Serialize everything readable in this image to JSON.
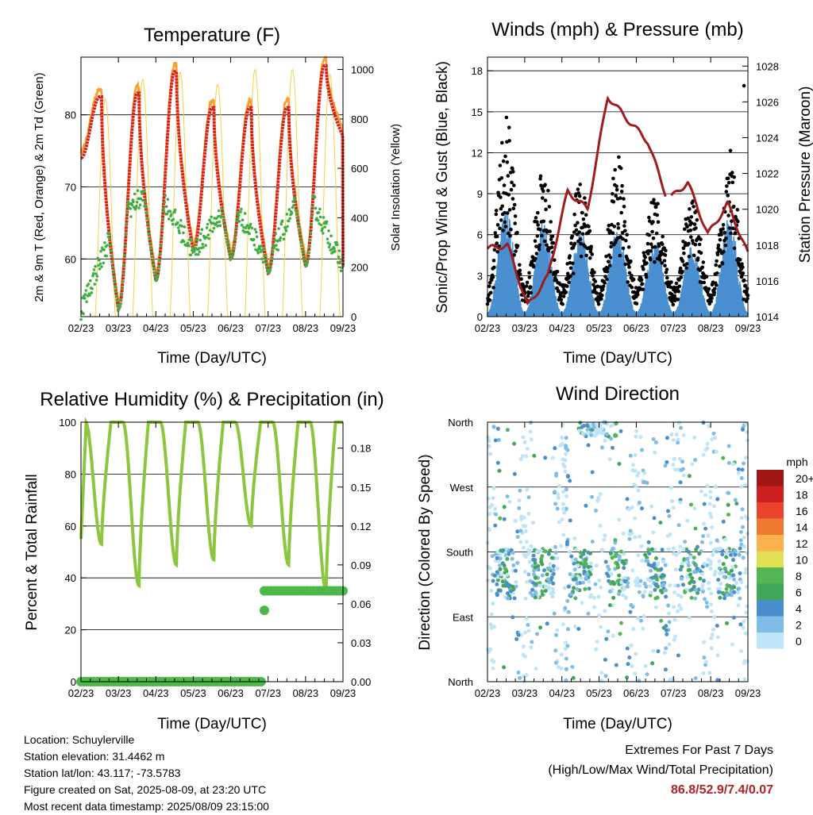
{
  "x_ticks": [
    "02/23",
    "03/23",
    "04/23",
    "05/23",
    "06/23",
    "07/23",
    "08/23",
    "09/23"
  ],
  "panels": {
    "temperature": {
      "title": "Temperature (F)",
      "xlabel": "Time (Day/UTC)",
      "ylabel_left": "2m & 9m T (Red, Orange) & 2m Td (Green)",
      "ylabel_right": "Solar Insolation (Yellow)",
      "left_ticks": [
        "60",
        "70",
        "80"
      ],
      "right_ticks": [
        "0",
        "200",
        "400",
        "600",
        "800",
        "1000"
      ]
    },
    "winds": {
      "title": "Winds (mph) & Pressure (mb)",
      "xlabel": "Time (Day/UTC)",
      "ylabel_left": "Sonic/Prop Wind & Gust (Blue, Black)",
      "ylabel_right": "Station Pressure (Maroon)",
      "left_ticks": [
        "0",
        "3",
        "6",
        "9",
        "12",
        "15",
        "18"
      ],
      "right_ticks": [
        "1014",
        "1016",
        "1018",
        "1020",
        "1022",
        "1024",
        "1026",
        "1028"
      ]
    },
    "humidity": {
      "title": "Relative Humidity (%) & Precipitation (in)",
      "xlabel": "Time (Day/UTC)",
      "ylabel_left": "Percent & Total Rainfall",
      "left_ticks": [
        "0",
        "20",
        "40",
        "60",
        "80",
        "100"
      ],
      "right_ticks": [
        "0.00",
        "0.03",
        "0.06",
        "0.09",
        "0.12",
        "0.15",
        "0.18"
      ]
    },
    "direction": {
      "title": "Wind Direction",
      "xlabel": "Time (Day/UTC)",
      "ylabel_left": "Direction (Colored By Speed)",
      "left_ticks": [
        "North",
        "East",
        "South",
        "West",
        "North"
      ],
      "legend_title": "mph",
      "legend_labels": [
        "0",
        "2",
        "4",
        "6",
        "8",
        "10",
        "12",
        "14",
        "16",
        "18",
        "20+"
      ],
      "legend_colors": [
        "#bde4f7",
        "#7fbde6",
        "#4a8fcc",
        "#41a65a",
        "#53b553",
        "#e3df55",
        "#f9b24c",
        "#f07a31",
        "#e8452c",
        "#cc2020",
        "#a01515"
      ]
    }
  },
  "chart_data": [
    {
      "type": "line",
      "title": "Temperature (F)",
      "xlabel": "Time (Day/UTC)",
      "ylim": [
        52,
        88
      ],
      "y2lim": [
        0,
        1050
      ],
      "x": [
        "02/23",
        "03/23",
        "04/23",
        "05/23",
        "06/23",
        "07/23",
        "08/23",
        "09/23"
      ],
      "series": [
        {
          "values_daily_max": [
            82.5,
            83,
            86,
            81,
            81,
            81,
            86.8
          ]
        },
        {
          "values_daily_min": [
            74,
            53,
            57,
            61,
            60,
            58,
            59,
            77
          ]
        },
        {
          "values_dewpoint_range": [
            53,
            66,
            70,
            61,
            68,
            60,
            70,
            59
          ]
        },
        {
          "values_insolation_peak": [
            880,
            960,
            990,
            940,
            1000,
            1000,
            980
          ]
        }
      ]
    },
    {
      "type": "scatter",
      "title": "Winds (mph) & Pressure (mb)",
      "xlabel": "Time (Day/UTC)",
      "ylim": [
        0,
        19
      ],
      "y2lim": [
        1014,
        1028.5
      ],
      "series": [
        {
          "values_gust_daily_max": [
            14.3,
            10,
            10,
            11,
            9,
            8,
            11,
            16.9
          ]
        },
        {
          "values_wind_daily_max": [
            7,
            6,
            5.5,
            5.7,
            5,
            4.5,
            6.5
          ]
        },
        {
          "values_pressure": [
            1017.8,
            1018,
            1014.6,
            1016.2,
            1021,
            1020,
            1026.3,
            1025,
            1023.8,
            1020.5,
            1021.5,
            1018.6,
            1020.3,
            1017.5
          ]
        }
      ]
    },
    {
      "type": "line",
      "title": "Relative Humidity (%) & Precipitation (in)",
      "xlabel": "Time (Day/UTC)",
      "ylim": [
        0,
        100
      ],
      "y2lim": [
        0,
        0.2
      ],
      "series": [
        {
          "values_rh_daily_min": [
            53,
            37,
            45,
            47,
            60,
            45,
            35
          ]
        },
        {
          "values_rh_daily_max": [
            100,
            100,
            100,
            100,
            100,
            100,
            100
          ]
        },
        {
          "values_precip": [
            0.0,
            0.0,
            0.0,
            0.0,
            0.0,
            0.055,
            0.07,
            0.07
          ]
        }
      ]
    },
    {
      "type": "scatter",
      "title": "Wind Direction",
      "xlabel": "Time (Day/UTC)",
      "y_categories": [
        "North",
        "East",
        "South",
        "West",
        "North"
      ]
    }
  ],
  "info": {
    "location": "Location: Schuylerville",
    "elevation": "Station elevation: 31.4462 m",
    "latlon": "Station lat/lon: 43.117; -73.5783",
    "created": "Figure created on Sat, 2025-08-09, at 23:20 UTC",
    "recent": "Most recent data timestamp: 2025/08/09 23:15:00"
  },
  "extremes": {
    "line1": "Extremes For Past 7 Days",
    "line2": "(High/Low/Max Wind/Total Precipitation)",
    "values": "86.8/52.9/7.4/0.07"
  }
}
